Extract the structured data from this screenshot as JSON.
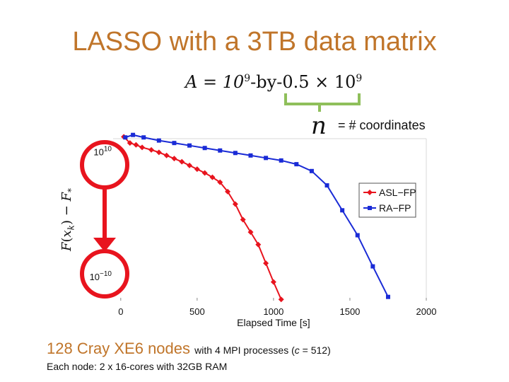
{
  "slide": {
    "title": "LASSO with a 3TB data matrix",
    "formula": {
      "lhs": "A = 10",
      "exp1": "9",
      "mid": "-by-0.5 × 10",
      "exp2": "9"
    },
    "n_symbol": "n",
    "n_note": "= # coordinates",
    "ylabel": "F(x_k) − F_*",
    "footer_main": "128 Cray XE6 nodes",
    "footer_detail_prefix": "with 4 MPI processes (",
    "footer_detail_c": "c",
    "footer_detail_suffix": " = 512)",
    "footer_note": "Each node: 2 x 16-cores with 32GB RAM",
    "colors": {
      "title": "#c0752a",
      "brace": "#8fbf5a",
      "circle": "#e8141e",
      "asl": "#e8141e",
      "ra": "#1a2bd6"
    }
  },
  "chart_data": {
    "type": "line",
    "xlabel": "Elapsed Time [s]",
    "ylabel": "F(x_k) − F_*",
    "xlim": [
      -50,
      2000
    ],
    "x_ticks": [
      0,
      500,
      1000,
      1500,
      2000
    ],
    "x_tick_labels": [
      "0",
      "500",
      "1000",
      "1500",
      "2000"
    ],
    "y_scale": "log",
    "ylim_exp": [
      -14,
      12
    ],
    "y_ticks": [
      10,
      -10
    ],
    "y_tick_labels": [
      "10",
      "10"
    ],
    "y_tick_exps": [
      "10",
      "−10"
    ],
    "legend_position": "right",
    "series": [
      {
        "name": "ASL−FP",
        "color": "#e8141e",
        "marker": "diamond",
        "x": [
          20,
          60,
          100,
          140,
          200,
          250,
          300,
          350,
          400,
          450,
          500,
          550,
          600,
          650,
          700,
          750,
          800,
          850,
          900,
          950,
          1000,
          1050
        ],
        "y_exp": [
          12.3,
          11.3,
          11.0,
          10.6,
          10.2,
          9.8,
          9.3,
          8.8,
          8.3,
          7.7,
          7.1,
          6.5,
          5.8,
          5.0,
          3.5,
          1.5,
          -1.0,
          -3.0,
          -5.0,
          -8.0,
          -11.0,
          -13.8
        ]
      },
      {
        "name": "RA−FP",
        "color": "#1a2bd6",
        "marker": "square",
        "x": [
          30,
          80,
          150,
          250,
          350,
          450,
          550,
          650,
          750,
          850,
          950,
          1050,
          1150,
          1250,
          1350,
          1450,
          1550,
          1650,
          1750
        ],
        "y_exp": [
          12.2,
          12.6,
          12.2,
          11.7,
          11.3,
          10.9,
          10.5,
          10.1,
          9.7,
          9.3,
          8.9,
          8.5,
          7.9,
          6.8,
          4.5,
          0.5,
          -3.5,
          -8.5,
          -13.4
        ]
      }
    ]
  }
}
